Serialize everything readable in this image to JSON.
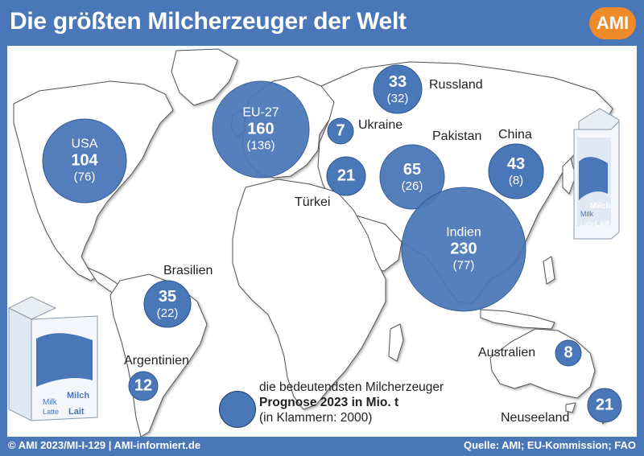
{
  "title": "Die größten Milcherzeuger der Welt",
  "logo": "AMI",
  "colors": {
    "frame": "#4a77b8",
    "bubble": "#4a77b8",
    "logo": "#ef8a2a"
  },
  "bubbles": [
    {
      "id": "usa",
      "name": "USA",
      "value": "104",
      "old": "(76)"
    },
    {
      "id": "eu27",
      "name": "EU-27",
      "value": "160",
      "old": "(136)"
    },
    {
      "id": "russland",
      "name": "",
      "value": "33",
      "old": "(32)"
    },
    {
      "id": "ukraine",
      "name": "",
      "value": "7",
      "old": ""
    },
    {
      "id": "tuerkei",
      "name": "",
      "value": "21",
      "old": ""
    },
    {
      "id": "pakistan",
      "name": "",
      "value": "65",
      "old": "(26)"
    },
    {
      "id": "china",
      "name": "",
      "value": "43",
      "old": "(8)"
    },
    {
      "id": "indien",
      "name": "Indien",
      "value": "230",
      "old": "(77)"
    },
    {
      "id": "brasilien",
      "name": "",
      "value": "35",
      "old": "(22)"
    },
    {
      "id": "argentinien",
      "name": "",
      "value": "12",
      "old": ""
    },
    {
      "id": "australien",
      "name": "",
      "value": "8",
      "old": ""
    },
    {
      "id": "neuseeland",
      "name": "",
      "value": "21",
      "old": ""
    }
  ],
  "labels": {
    "russland": "Russland",
    "ukraine": "Ukraine",
    "pakistan": "Pakistan",
    "china": "China",
    "tuerkei": "Türkei",
    "brasilien": "Brasilien",
    "argentinien": "Argentinien",
    "australien": "Australien",
    "neuseeland": "Neuseeland"
  },
  "legend": {
    "line1": "die bedeutendsten Milcherzeuger",
    "line2": "Prognose 2023 in Mio. t",
    "line3": "(in Klammern: 2000)"
  },
  "cartons": {
    "text_milk": "Milk",
    "text_milch": "Milch",
    "text_latte": "Latte",
    "text_lait": "Lait"
  },
  "footer": {
    "left": "© AMI 2023/MI-I-129 | AMI-informiert.de",
    "right": "Quelle: AMI; EU-Kommission; FAO"
  }
}
